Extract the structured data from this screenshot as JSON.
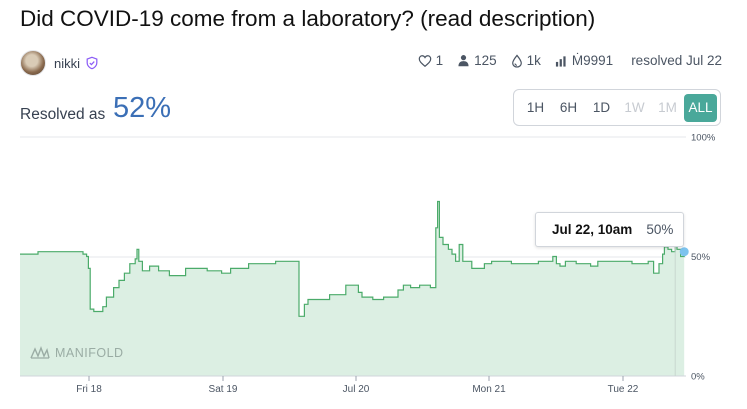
{
  "question": {
    "title": "Did COVID-19 come from a laboratory? (read description)"
  },
  "author": {
    "name": "nikki",
    "avatar_icon": "avatar-photo",
    "badge_icon": "shield-check-icon"
  },
  "stats": {
    "likes": "1",
    "traders": "125",
    "liquidity": "1k",
    "volume": "Ṁ9991",
    "resolved": "resolved Jul 22"
  },
  "resolution": {
    "label": "Resolved as",
    "value": "52%"
  },
  "time_ranges": [
    {
      "label": "1H",
      "state": "enabled"
    },
    {
      "label": "6H",
      "state": "enabled"
    },
    {
      "label": "1D",
      "state": "enabled"
    },
    {
      "label": "1W",
      "state": "disabled"
    },
    {
      "label": "1M",
      "state": "disabled"
    },
    {
      "label": "ALL",
      "state": "active"
    }
  ],
  "tooltip": {
    "date": "Jul 22, 10am",
    "value": "50%"
  },
  "watermark": "MANIFOLD",
  "colors": {
    "accent": "#4aa89a",
    "line": "#4bab6a",
    "fill": "#dcefe3",
    "resolved_value": "#3b6fb6",
    "end_dot": "#7cc3ee"
  },
  "chart_data": {
    "type": "area",
    "x_ticks": [
      "Fri 18",
      "Sat 19",
      "Jul 20",
      "Mon 21",
      "Tue 22"
    ],
    "y_ticks": [
      "100%",
      "50%",
      "0%"
    ],
    "ylim": [
      0,
      100
    ],
    "grid": true,
    "x_units": "days since start of chart (0 = start, Fri 18 ≈ 0.47)",
    "points": [
      [
        0.0,
        51
      ],
      [
        0.1,
        51
      ],
      [
        0.1,
        52
      ],
      [
        0.35,
        52
      ],
      [
        0.35,
        51
      ],
      [
        0.37,
        51
      ],
      [
        0.37,
        50
      ],
      [
        0.38,
        50
      ],
      [
        0.38,
        45
      ],
      [
        0.39,
        45
      ],
      [
        0.39,
        28
      ],
      [
        0.41,
        28
      ],
      [
        0.41,
        27
      ],
      [
        0.46,
        27
      ],
      [
        0.46,
        29
      ],
      [
        0.48,
        29
      ],
      [
        0.48,
        33
      ],
      [
        0.52,
        33
      ],
      [
        0.52,
        37
      ],
      [
        0.55,
        37
      ],
      [
        0.55,
        40
      ],
      [
        0.58,
        40
      ],
      [
        0.58,
        43
      ],
      [
        0.61,
        43
      ],
      [
        0.61,
        47
      ],
      [
        0.64,
        47
      ],
      [
        0.64,
        49
      ],
      [
        0.65,
        49
      ],
      [
        0.65,
        53
      ],
      [
        0.66,
        53
      ],
      [
        0.66,
        48
      ],
      [
        0.68,
        48
      ],
      [
        0.68,
        44
      ],
      [
        0.72,
        44
      ],
      [
        0.72,
        46
      ],
      [
        0.77,
        46
      ],
      [
        0.77,
        44
      ],
      [
        0.83,
        44
      ],
      [
        0.83,
        42
      ],
      [
        0.92,
        42
      ],
      [
        0.92,
        45
      ],
      [
        1.04,
        45
      ],
      [
        1.04,
        44
      ],
      [
        1.12,
        44
      ],
      [
        1.12,
        43
      ],
      [
        1.17,
        43
      ],
      [
        1.17,
        45
      ],
      [
        1.27,
        45
      ],
      [
        1.27,
        47
      ],
      [
        1.42,
        47
      ],
      [
        1.42,
        48
      ],
      [
        1.55,
        48
      ],
      [
        1.55,
        25
      ],
      [
        1.58,
        25
      ],
      [
        1.58,
        30
      ],
      [
        1.6,
        30
      ],
      [
        1.6,
        32
      ],
      [
        1.72,
        32
      ],
      [
        1.72,
        34
      ],
      [
        1.81,
        34
      ],
      [
        1.81,
        38
      ],
      [
        1.88,
        38
      ],
      [
        1.88,
        35
      ],
      [
        1.9,
        35
      ],
      [
        1.9,
        33
      ],
      [
        1.96,
        33
      ],
      [
        1.96,
        32
      ],
      [
        2.02,
        32
      ],
      [
        2.02,
        33
      ],
      [
        2.1,
        33
      ],
      [
        2.1,
        36
      ],
      [
        2.13,
        36
      ],
      [
        2.13,
        38
      ],
      [
        2.17,
        38
      ],
      [
        2.17,
        37
      ],
      [
        2.22,
        37
      ],
      [
        2.22,
        38
      ],
      [
        2.28,
        38
      ],
      [
        2.28,
        37
      ],
      [
        2.31,
        37
      ],
      [
        2.31,
        62
      ],
      [
        2.32,
        62
      ],
      [
        2.32,
        73
      ],
      [
        2.33,
        73
      ],
      [
        2.33,
        58
      ],
      [
        2.35,
        58
      ],
      [
        2.35,
        55
      ],
      [
        2.38,
        55
      ],
      [
        2.38,
        53
      ],
      [
        2.4,
        53
      ],
      [
        2.4,
        51
      ],
      [
        2.42,
        51
      ],
      [
        2.42,
        48
      ],
      [
        2.44,
        48
      ],
      [
        2.44,
        55
      ],
      [
        2.46,
        55
      ],
      [
        2.46,
        48
      ],
      [
        2.51,
        48
      ],
      [
        2.51,
        45
      ],
      [
        2.58,
        45
      ],
      [
        2.58,
        47
      ],
      [
        2.62,
        47
      ],
      [
        2.62,
        48
      ],
      [
        2.73,
        48
      ],
      [
        2.73,
        47
      ],
      [
        2.88,
        47
      ],
      [
        2.88,
        48
      ],
      [
        2.96,
        48
      ],
      [
        2.96,
        50
      ],
      [
        2.98,
        50
      ],
      [
        2.98,
        47
      ],
      [
        3.0,
        47
      ],
      [
        3.0,
        46
      ],
      [
        3.03,
        46
      ],
      [
        3.03,
        48
      ],
      [
        3.09,
        48
      ],
      [
        3.09,
        47
      ],
      [
        3.17,
        47
      ],
      [
        3.17,
        46
      ],
      [
        3.21,
        46
      ],
      [
        3.21,
        48
      ],
      [
        3.4,
        48
      ],
      [
        3.4,
        47
      ],
      [
        3.49,
        47
      ],
      [
        3.49,
        48
      ],
      [
        3.52,
        48
      ],
      [
        3.52,
        43
      ],
      [
        3.55,
        43
      ],
      [
        3.55,
        47
      ],
      [
        3.57,
        47
      ],
      [
        3.57,
        51
      ],
      [
        3.58,
        51
      ],
      [
        3.58,
        54
      ],
      [
        3.6,
        54
      ],
      [
        3.6,
        53
      ],
      [
        3.62,
        53
      ],
      [
        3.62,
        52
      ],
      [
        3.64,
        52
      ],
      [
        3.64,
        55
      ],
      [
        3.65,
        55
      ],
      [
        3.65,
        53
      ],
      [
        3.67,
        53
      ],
      [
        3.67,
        50
      ],
      [
        3.69,
        50
      ],
      [
        3.69,
        52
      ]
    ],
    "hover_point": [
      3.64,
      50
    ]
  }
}
